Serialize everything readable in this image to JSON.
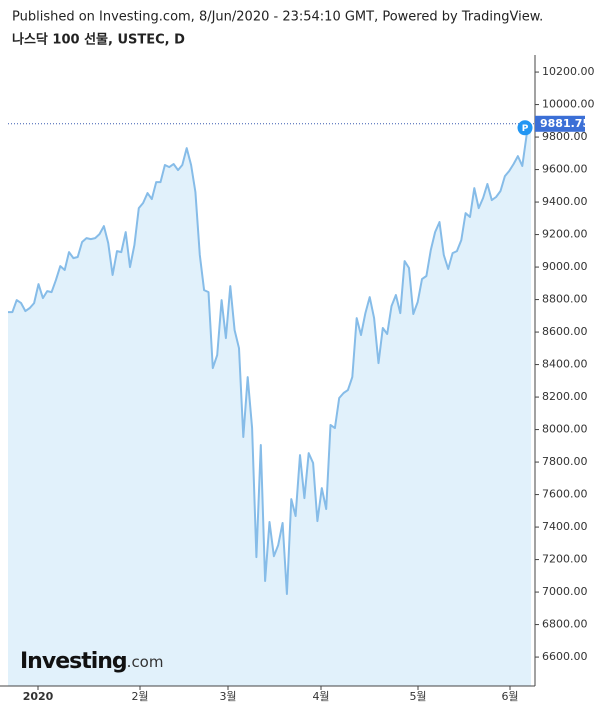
{
  "chart_data": {
    "type": "area",
    "note": "Published on Investing.com, 8/Jun/2020 - 23:54:10 GMT, Powered by TradingView.",
    "title": "나스닥 100 선물, USTEC, D",
    "logo": {
      "main": "Investing",
      "suffix": ".com"
    },
    "price_marker": "P",
    "x_labels": [
      "2020",
      "2월",
      "3월",
      "4월",
      "5월",
      "6월"
    ],
    "series": [
      {
        "name": "USTEC",
        "color": "#86bce8",
        "fill": "#e1f1fb",
        "values": [
          8723,
          8723,
          8797,
          8778,
          8729,
          8748,
          8778,
          8895,
          8809,
          8852,
          8846,
          8920,
          9006,
          8982,
          9092,
          9055,
          9062,
          9154,
          9178,
          9172,
          9178,
          9203,
          9252,
          9148,
          8951,
          9098,
          9092,
          9215,
          9000,
          9135,
          9363,
          9394,
          9455,
          9418,
          9523,
          9523,
          9628,
          9615,
          9634,
          9597,
          9628,
          9732,
          9628,
          9462,
          9074,
          8858,
          8846,
          8378,
          8458,
          8797,
          8563,
          8883,
          8612,
          8501,
          7954,
          8323,
          8009,
          7215,
          7905,
          7068,
          7431,
          7221,
          7289,
          7425,
          6988,
          7572,
          7468,
          7843,
          7578,
          7855,
          7794,
          7437,
          7640,
          7511,
          8028,
          8009,
          8194,
          8225,
          8243,
          8323,
          8686,
          8582,
          8717,
          8815,
          8686,
          8409,
          8625,
          8588,
          8760,
          8828,
          8717,
          9037,
          8994,
          8711,
          8785,
          8926,
          8945,
          9105,
          9215,
          9277,
          9074,
          8988,
          9086,
          9098,
          9166,
          9332,
          9308,
          9486,
          9363,
          9425,
          9511,
          9412,
          9431,
          9468,
          9560,
          9591,
          9634,
          9683,
          9622,
          9812,
          9881.75
        ]
      }
    ],
    "ylim": [
      6422,
      10305
    ],
    "yticks": [
      {
        "value": 6600,
        "label": "6600.00"
      },
      {
        "value": 6800,
        "label": "6800.00"
      },
      {
        "value": 7000,
        "label": "7000.00"
      },
      {
        "value": 7200,
        "label": "7200.00"
      },
      {
        "value": 7400,
        "label": "7400.00"
      },
      {
        "value": 7600,
        "label": "7600.00"
      },
      {
        "value": 7800,
        "label": "7800.00"
      },
      {
        "value": 8000,
        "label": "8000.00"
      },
      {
        "value": 8200,
        "label": "8200.00"
      },
      {
        "value": 8400,
        "label": "8400.00"
      },
      {
        "value": 8600,
        "label": "8600.00"
      },
      {
        "value": 8800,
        "label": "8800.00"
      },
      {
        "value": 9000,
        "label": "9000.00"
      },
      {
        "value": 9200,
        "label": "9200.00"
      },
      {
        "value": 9400,
        "label": "9400.00"
      },
      {
        "value": 9600,
        "label": "9600.00"
      },
      {
        "value": 9800,
        "label": "9800.00"
      },
      {
        "value": 10000,
        "label": "10000.00"
      },
      {
        "value": 10200,
        "label": "10200.00"
      }
    ]
  }
}
